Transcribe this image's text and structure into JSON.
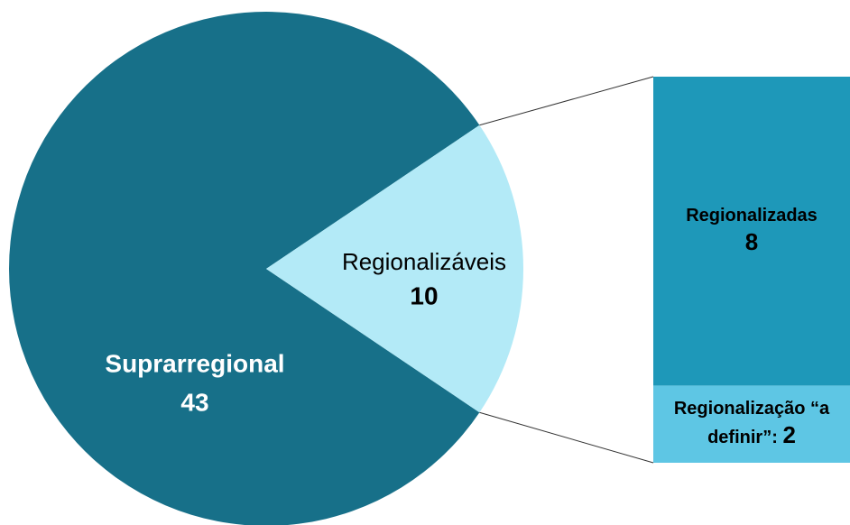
{
  "chart_data": [
    {
      "type": "pie",
      "categories": [
        "Suprarregional",
        "Regionalizáveis"
      ],
      "values": [
        43,
        10
      ],
      "colors": [
        "#177089",
        "#b3eaf7"
      ]
    },
    {
      "type": "bar",
      "categories": [
        "Regionalizadas",
        "Regionalização “a definir”:"
      ],
      "values": [
        8,
        2
      ],
      "colors": [
        "#1e98b9",
        "#5ec6e4"
      ]
    }
  ]
}
